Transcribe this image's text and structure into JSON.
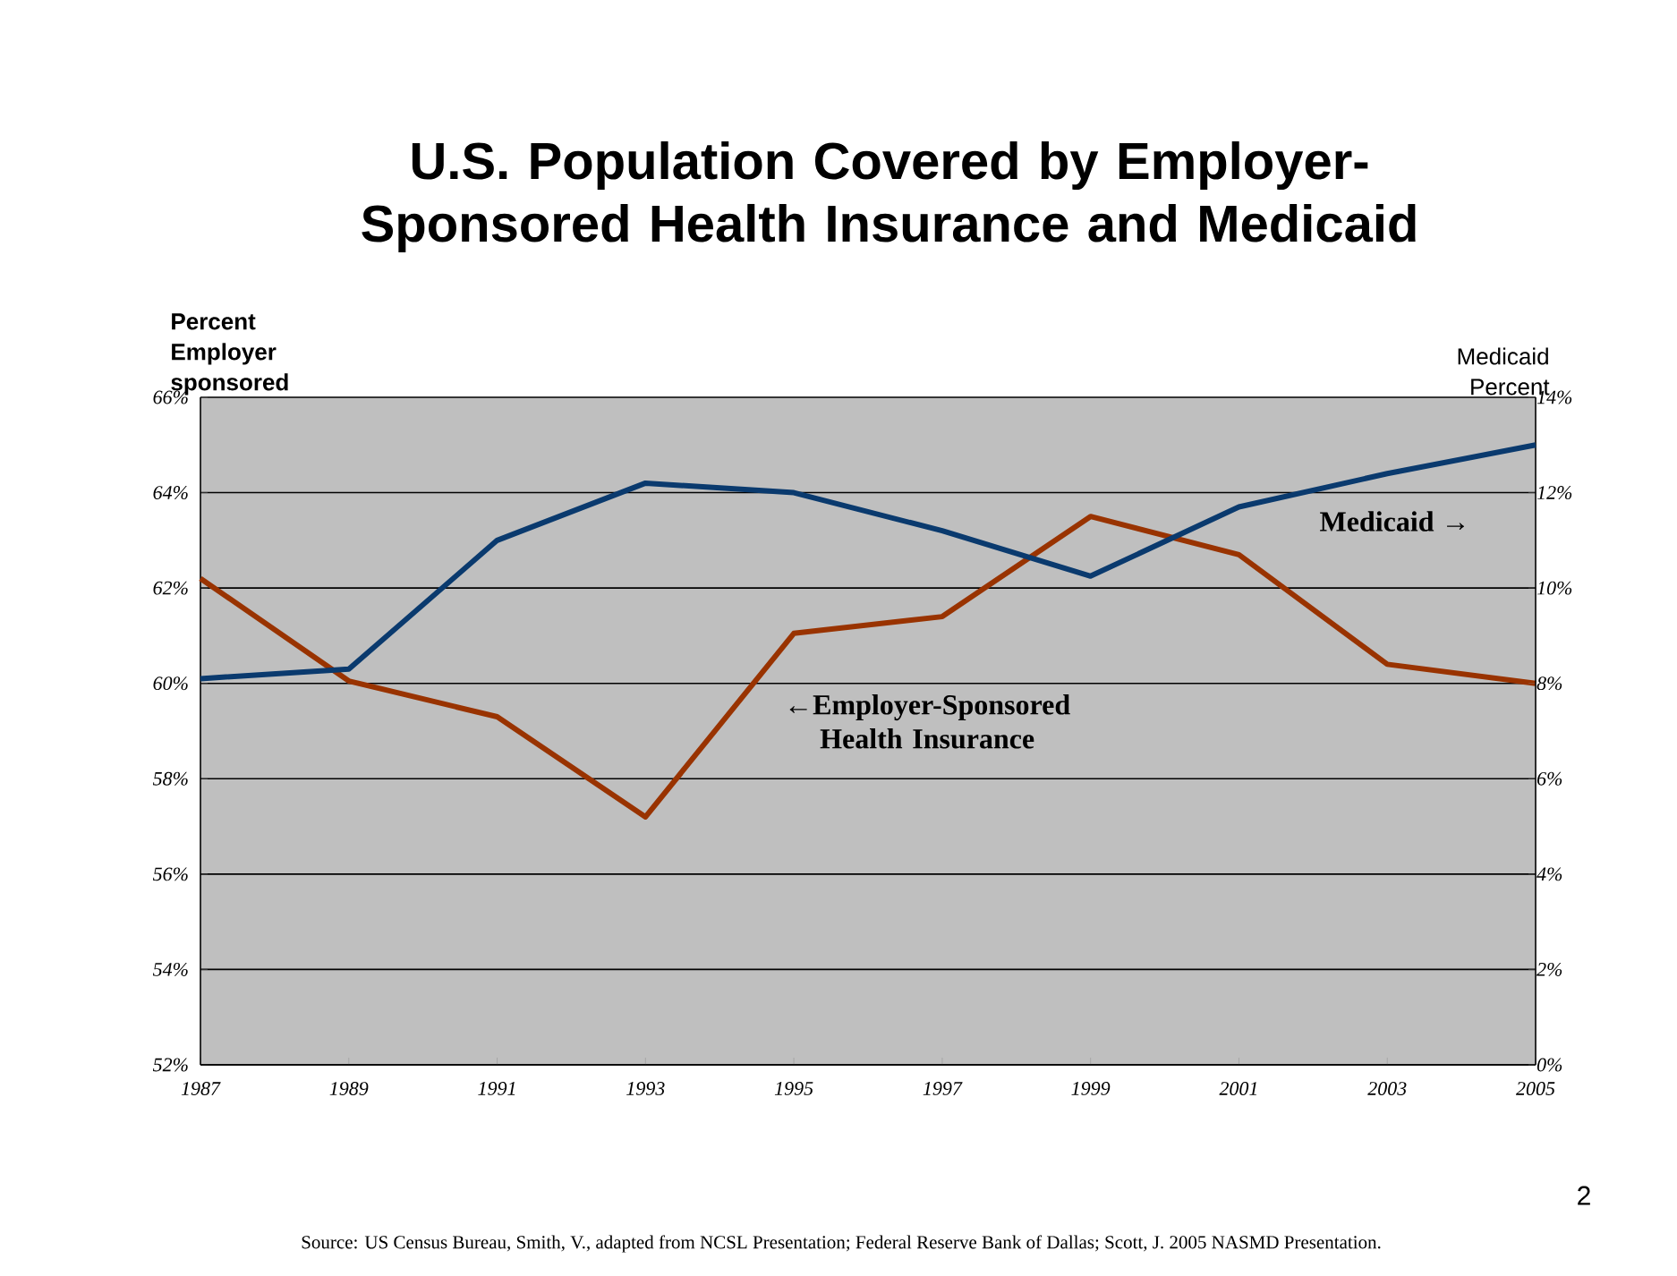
{
  "chart_data": {
    "type": "line",
    "title": "U.S. Population Covered by Employer-Sponsored Health Insurance and Medicaid",
    "ylabel": "Percent Employer sponsored",
    "y2label": "Medicaid Percent",
    "x": [
      1987,
      1989,
      1991,
      1993,
      1995,
      1997,
      1999,
      2001,
      2003,
      2005
    ],
    "xlim": [
      1987,
      2005
    ],
    "xticks": [
      1987,
      1989,
      1991,
      1993,
      1995,
      1997,
      1999,
      2001,
      2003,
      2005
    ],
    "ylim": [
      52,
      66
    ],
    "yticks": [
      {
        "value": 52,
        "label": "52%"
      },
      {
        "value": 54,
        "label": "54%"
      },
      {
        "value": 56,
        "label": "56%"
      },
      {
        "value": 58,
        "label": "58%"
      },
      {
        "value": 60,
        "label": "60%"
      },
      {
        "value": 62,
        "label": "62%"
      },
      {
        "value": 64,
        "label": "64%"
      },
      {
        "value": 66,
        "label": "66%"
      }
    ],
    "y2lim": [
      0,
      14
    ],
    "y2ticks": [
      {
        "value": 0,
        "label": "0%"
      },
      {
        "value": 2,
        "label": "2%"
      },
      {
        "value": 4,
        "label": "4%"
      },
      {
        "value": 6,
        "label": "6%"
      },
      {
        "value": 8,
        "label": "8%"
      },
      {
        "value": 10,
        "label": "10%"
      },
      {
        "value": 12,
        "label": "12%"
      },
      {
        "value": 14,
        "label": "14%"
      }
    ],
    "series": [
      {
        "name": "←Employer-Sponsored Health Insurance",
        "color": "#993300",
        "values": [
          62.2,
          60.05,
          59.3,
          57.2,
          61.05,
          61.4,
          63.5,
          62.7,
          60.4,
          60.0
        ]
      },
      {
        "name": "Medicaid →",
        "color": "#0a3a6e",
        "axis": "y2",
        "values": [
          8.1,
          8.3,
          11.0,
          12.2,
          12.0,
          11.2,
          10.25,
          11.7,
          12.4,
          13.0
        ]
      }
    ],
    "grid": "y",
    "annotations": [
      "2",
      "Source: US Census Bureau, Smith, V., adapted from  NCSL Presentation; Federal Reserve Bank of Dallas; Scott, J.  2005 NASMD Presentation."
    ]
  }
}
